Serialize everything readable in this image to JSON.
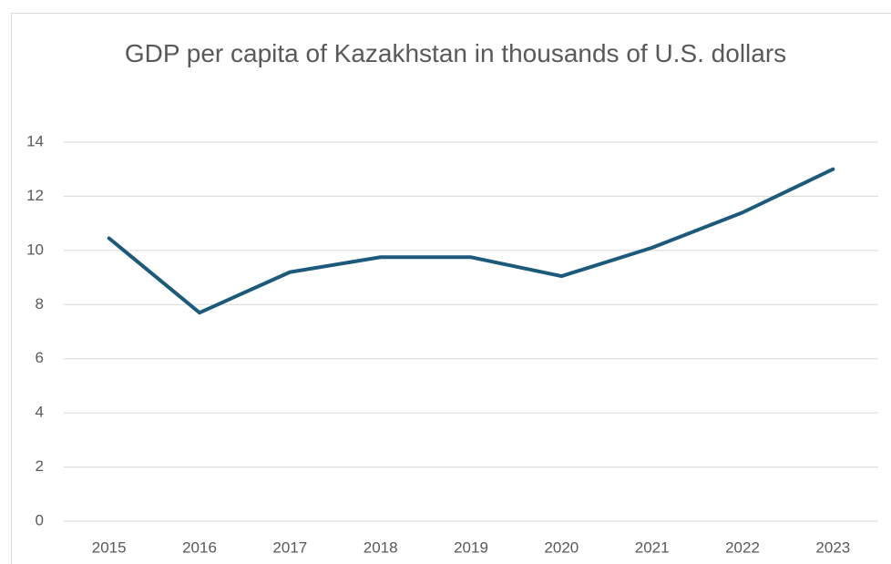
{
  "chart_data": {
    "type": "line",
    "title": "GDP per capita of Kazakhstan in thousands of U.S. dollars",
    "categories": [
      "2015",
      "2016",
      "2017",
      "2018",
      "2019",
      "2020",
      "2021",
      "2022",
      "2023"
    ],
    "values": [
      10.45,
      7.7,
      9.2,
      9.75,
      9.75,
      9.05,
      10.1,
      11.4,
      13.0
    ],
    "color": "#1b5a7a",
    "ylim": [
      0,
      14
    ],
    "yticks": [
      0,
      2,
      4,
      6,
      8,
      10,
      12,
      14
    ],
    "grid": true
  }
}
